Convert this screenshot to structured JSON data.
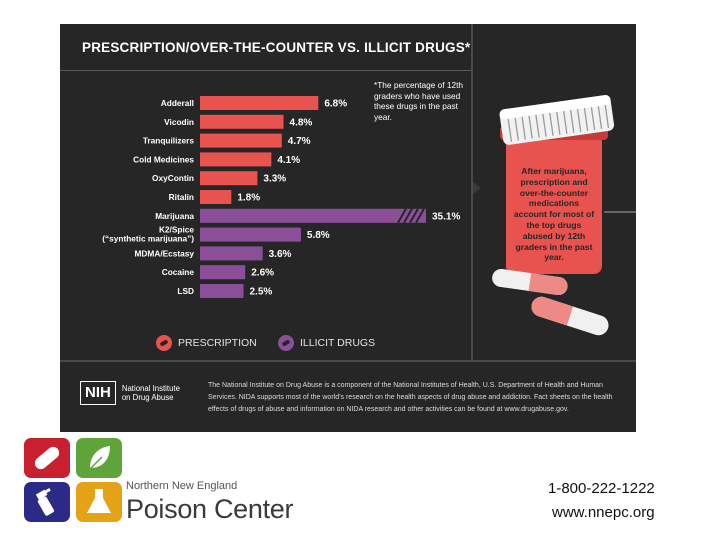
{
  "chart_data": {
    "type": "bar",
    "orientation": "horizontal",
    "title": "PRESCRIPTION/OVER-THE-COUNTER VS. ILLICIT DRUGS*",
    "footnote": "*The percentage of 12th graders who have used these drugs in the past year.",
    "unit": "%",
    "bars": [
      {
        "label": "Adderall",
        "value": 6.8,
        "value_label": "6.8%",
        "category": "prescription"
      },
      {
        "label": "Vicodin",
        "value": 4.8,
        "value_label": "4.8%",
        "category": "prescription"
      },
      {
        "label": "Tranquilizers",
        "value": 4.7,
        "value_label": "4.7%",
        "category": "prescription"
      },
      {
        "label": "Cold Medicines",
        "value": 4.1,
        "value_label": "4.1%",
        "category": "prescription"
      },
      {
        "label": "OxyContin",
        "value": 3.3,
        "value_label": "3.3%",
        "category": "prescription"
      },
      {
        "label": "Ritalin",
        "value": 1.8,
        "value_label": "1.8%",
        "category": "prescription"
      },
      {
        "label": "Marijuana",
        "value": 35.1,
        "value_label": "35.1%",
        "category": "illicit",
        "axis_break": true
      },
      {
        "label": "K2/Spice",
        "label2": "(“synthetic marijuana”)",
        "value": 5.8,
        "value_label": "5.8%",
        "category": "illicit"
      },
      {
        "label": "MDMA/Ecstasy",
        "value": 3.6,
        "value_label": "3.6%",
        "category": "illicit"
      },
      {
        "label": "Cocaine",
        "value": 2.6,
        "value_label": "2.6%",
        "category": "illicit"
      },
      {
        "label": "LSD",
        "value": 2.5,
        "value_label": "2.5%",
        "category": "illicit"
      }
    ],
    "legend": [
      {
        "label": "PRESCRIPTION",
        "color": "#e8534f"
      },
      {
        "label": "ILLICIT DRUGS",
        "color": "#8b4f9a"
      }
    ],
    "colors": {
      "prescription": "#e8534f",
      "illicit": "#8b4f9a"
    }
  },
  "callout": {
    "text": "After marijuana, prescription and over-the-counter medications account for most of the top drugs abused by 12th graders in the past year."
  },
  "nih": {
    "logo_text": "NIH",
    "name": "National Institute on Drug Abuse",
    "description": "The National Institute on Drug Abuse is a component of the National Institutes of Health, U.S. Department of Health and Human Services. NIDA supports most of the world’s research on the health aspects of drug abuse and addiction. Fact sheets on the health effects of drugs of abuse and information on NIDA research and other activities can be found at www.drugabuse.gov."
  },
  "org": {
    "name_top": "Northern New England",
    "name_bottom": "Poison Center",
    "phone": "1-800-222-1222",
    "website": "www.nnepc.org",
    "tile_colors": [
      "#c8202f",
      "#5fa33b",
      "#2b2a86",
      "#e4a317"
    ]
  }
}
